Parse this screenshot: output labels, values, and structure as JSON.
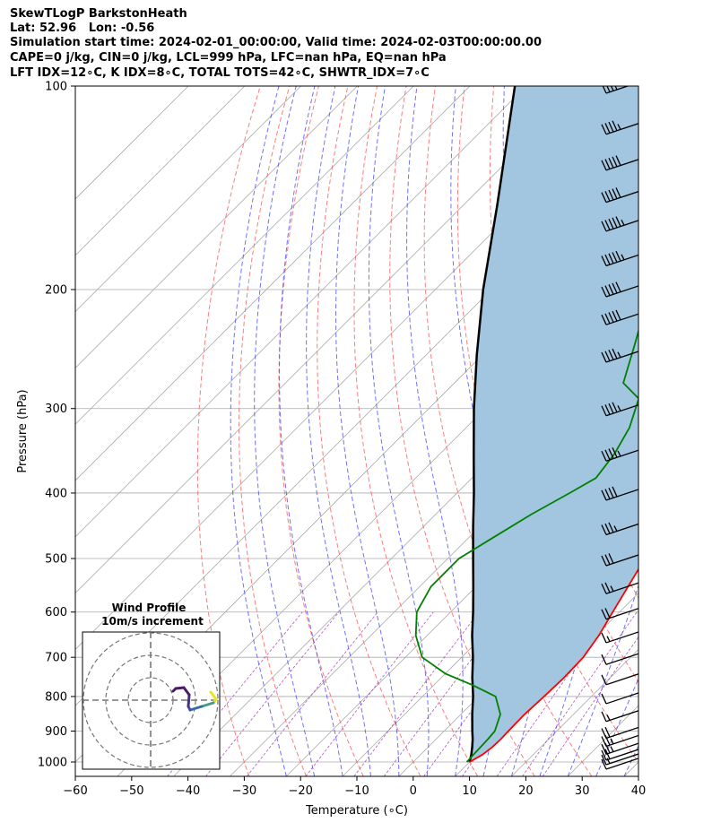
{
  "header": {
    "line1": "SkewTLogP BarkstonHeath",
    "line2": "Lat: 52.96   Lon: -0.56",
    "line3": "Simulation start time: 2024-02-01_00:00:00, Valid time: 2024-02-03T00:00:00.00",
    "line4": "CAPE=0 j/kg, CIN=0 j/kg, LCL=999 hPa, LFC=nan hPa, EQ=nan hPa",
    "line5": "LFT IDX=12∘C, K IDX=8∘C, TOTAL TOTS=42∘C, SHWTR_IDX=7∘C"
  },
  "chart_data": [
    {
      "type": "line",
      "subtype": "skew-t log-p",
      "xlabel": "Temperature (∘C)",
      "ylabel": "Pressure (hPa)",
      "xlim": [
        -60,
        40
      ],
      "ylim": [
        1050,
        100
      ],
      "y_scale": "log",
      "x_ticks": [
        "−60",
        "−50",
        "−40",
        "−30",
        "−20",
        "−10",
        "0",
        "10",
        "20",
        "30",
        "40"
      ],
      "y_ticks": [
        "100",
        "200",
        "300",
        "400",
        "500",
        "600",
        "700",
        "800",
        "900",
        "1000"
      ],
      "grid": true,
      "colors": {
        "temperature": "#ff0000",
        "dewpoint": "#008000",
        "parcel": "#000000",
        "fill": "#a3c6e0",
        "dry_adiabats": "#ff5050",
        "moist_adiabats": "#4040ff",
        "mixing_ratio": "#9c27b0",
        "isotherms": "#aaaaaa"
      },
      "series": [
        {
          "role": "temperature",
          "points": [
            [
              1000,
              10.0
            ],
            [
              975,
              11.0
            ],
            [
              950,
              11.4
            ],
            [
              925,
              11.5
            ],
            [
              900,
              11.4
            ],
            [
              850,
              11.3
            ],
            [
              800,
              11.6
            ],
            [
              750,
              11.8
            ],
            [
              700,
              11.6
            ],
            [
              650,
              10.5
            ],
            [
              600,
              8.8
            ],
            [
              550,
              7.0
            ],
            [
              500,
              5.0
            ],
            [
              450,
              2.0
            ],
            [
              400,
              -2.8
            ],
            [
              350,
              -8.0
            ],
            [
              330,
              -9.8
            ],
            [
              300,
              -12.5
            ],
            [
              250,
              -19.5
            ],
            [
              220,
              -25.0
            ],
            [
              200,
              -29.0
            ],
            [
              190,
              -31.2
            ],
            [
              180,
              -32.8
            ],
            [
              170,
              -33.5
            ],
            [
              160,
              -34.0
            ],
            [
              150,
              -33.0
            ],
            [
              140,
              -32.2
            ],
            [
              130,
              -31.0
            ],
            [
              120,
              -30.3
            ],
            [
              110,
              -29.5
            ],
            [
              100,
              -29.0
            ]
          ]
        },
        {
          "role": "dewpoint",
          "points": [
            [
              1000,
              9.5
            ],
            [
              975,
              9.4
            ],
            [
              950,
              9.3
            ],
            [
              925,
              9.2
            ],
            [
              900,
              9.0
            ],
            [
              850,
              7.0
            ],
            [
              800,
              3.0
            ],
            [
              770,
              -3.0
            ],
            [
              740,
              -10.0
            ],
            [
              700,
              -17.0
            ],
            [
              650,
              -22.0
            ],
            [
              600,
              -26.0
            ],
            [
              550,
              -28.0
            ],
            [
              500,
              -28.0
            ],
            [
              470,
              -26.0
            ],
            [
              430,
              -23.0
            ],
            [
              400,
              -20.0
            ],
            [
              380,
              -18.0
            ],
            [
              350,
              -19.0
            ],
            [
              320,
              -21.0
            ],
            [
              290,
              -24.5
            ],
            [
              275,
              -30.0
            ],
            [
              240,
              -35.0
            ],
            [
              210,
              -40.0
            ],
            [
              195,
              -43.5
            ],
            [
              175,
              -48.0
            ],
            [
              160,
              -49.5
            ],
            [
              145,
              -50.0
            ],
            [
              130,
              -53.0
            ],
            [
              120,
              -56.0
            ],
            [
              110,
              -60.0
            ],
            [
              100,
              -66.0
            ]
          ]
        },
        {
          "role": "parcel",
          "points": [
            [
              1000,
              10.0
            ],
            [
              975,
              9.0
            ],
            [
              950,
              7.8
            ],
            [
              925,
              6.5
            ],
            [
              900,
              5.0
            ],
            [
              850,
              2.0
            ],
            [
              800,
              -1.0
            ],
            [
              750,
              -4.5
            ],
            [
              700,
              -8.0
            ],
            [
              650,
              -12.0
            ],
            [
              600,
              -16.0
            ],
            [
              550,
              -20.5
            ],
            [
              500,
              -25.5
            ],
            [
              450,
              -31.0
            ],
            [
              400,
              -37.0
            ],
            [
              350,
              -44.0
            ],
            [
              300,
              -52.0
            ],
            [
              250,
              -61.0
            ],
            [
              200,
              -71.5
            ],
            [
              150,
              -84.0
            ],
            [
              100,
              -102.0
            ]
          ]
        }
      ],
      "wind_barbs": {
        "pressures": [
          1000,
          985,
          970,
          950,
          925,
          900,
          850,
          800,
          750,
          700,
          650,
          600,
          550,
          500,
          450,
          400,
          350,
          300,
          250,
          220,
          200,
          180,
          160,
          145,
          130,
          115,
          100
        ],
        "speeds_kt": [
          10,
          15,
          20,
          25,
          25,
          20,
          15,
          10,
          10,
          10,
          15,
          20,
          25,
          30,
          35,
          40,
          45,
          45,
          45,
          50,
          50,
          55,
          55,
          50,
          50,
          45,
          40
        ]
      },
      "inset": {
        "title": "Wind Profile",
        "subtitle": "10m/s increment"
      }
    }
  ]
}
